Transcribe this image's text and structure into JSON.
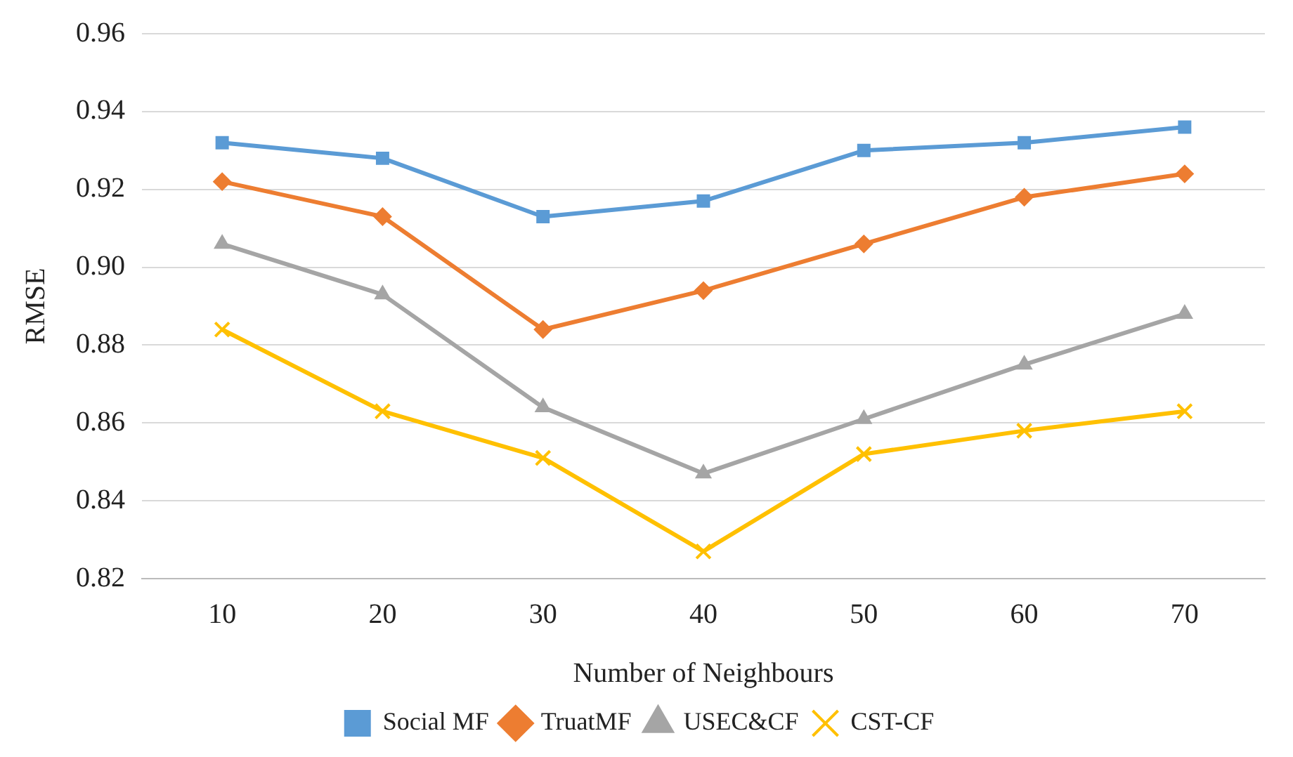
{
  "chart_data": {
    "type": "line",
    "xlabel": "Number of Neighbours",
    "ylabel": "RMSE",
    "categories": [
      "10",
      "20",
      "30",
      "40",
      "50",
      "60",
      "70"
    ],
    "series": [
      {
        "name": "Social MF",
        "color": "#5b9bd5",
        "marker": "square",
        "values": [
          0.932,
          0.928,
          0.913,
          0.917,
          0.93,
          0.932,
          0.936
        ]
      },
      {
        "name": "TruatMF",
        "color": "#ed7d31",
        "marker": "diamond",
        "values": [
          0.922,
          0.913,
          0.884,
          0.894,
          0.906,
          0.918,
          0.924
        ]
      },
      {
        "name": "USEC&CF",
        "color": "#a5a5a5",
        "marker": "triangle",
        "values": [
          0.906,
          0.893,
          0.864,
          0.847,
          0.861,
          0.875,
          0.888
        ]
      },
      {
        "name": "CST-CF",
        "color": "#ffc000",
        "marker": "cross",
        "values": [
          0.884,
          0.863,
          0.851,
          0.827,
          0.852,
          0.858,
          0.863
        ]
      }
    ],
    "ylim": [
      0.82,
      0.96
    ],
    "yticks": [
      0.82,
      0.84,
      0.86,
      0.88,
      {
        "value": 0.9,
        "label": "0.90"
      },
      0.92,
      0.94,
      0.96
    ],
    "grid": "y",
    "legend": "bottom",
    "line_style": "solid"
  }
}
